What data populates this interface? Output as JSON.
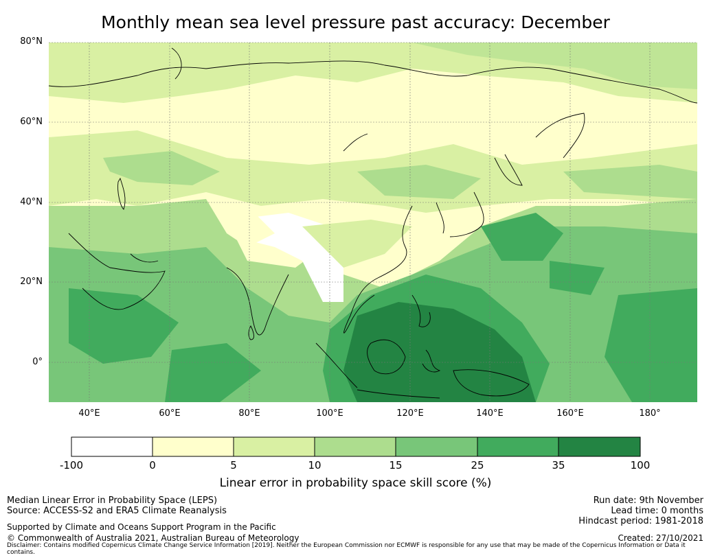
{
  "title": "Monthly mean sea level pressure past accuracy: December",
  "map": {
    "lat_labels": [
      "80°N",
      "60°N",
      "40°N",
      "20°N",
      "0°"
    ],
    "lon_labels": [
      "40°E",
      "60°E",
      "80°E",
      "100°E",
      "120°E",
      "140°E",
      "160°E",
      "180°"
    ],
    "extent": {
      "lon_min": 30,
      "lon_max": 192,
      "lat_min": -10,
      "lat_max": 80
    }
  },
  "colorbar": {
    "bounds": [
      "-100",
      "0",
      "5",
      "10",
      "15",
      "25",
      "35",
      "100"
    ],
    "colors": [
      "#ffffff",
      "#ffffcc",
      "#d9f0a3",
      "#addd8e",
      "#78c679",
      "#41ab5d",
      "#238443"
    ],
    "label": "Linear error in probability space skill score (%)"
  },
  "info": {
    "left_line1": "Median Linear Error in Probability Space (LEPS)",
    "left_line2": "Source: ACCESS-S2 and ERA5 Climate Reanalysis",
    "left_line3": "Supported by Climate and Oceans Support Program in the Pacific",
    "left_line4": "© Commonwealth of Australia 2021, Australian Bureau of Meteorology",
    "right_line1": "Run date: 9th November",
    "right_line2": "Lead time: 0 months",
    "right_line3": "Hindcast period: 1981-2018",
    "right_line4": "Created: 27/10/2021",
    "disclaimer": "Disclaimer: Contains modified Copernicus Climate Change Service Information [2019]. Neither the European Commission nor ECMWF is responsible for any use that may be made of the Copernicus Information or Data it contains."
  }
}
